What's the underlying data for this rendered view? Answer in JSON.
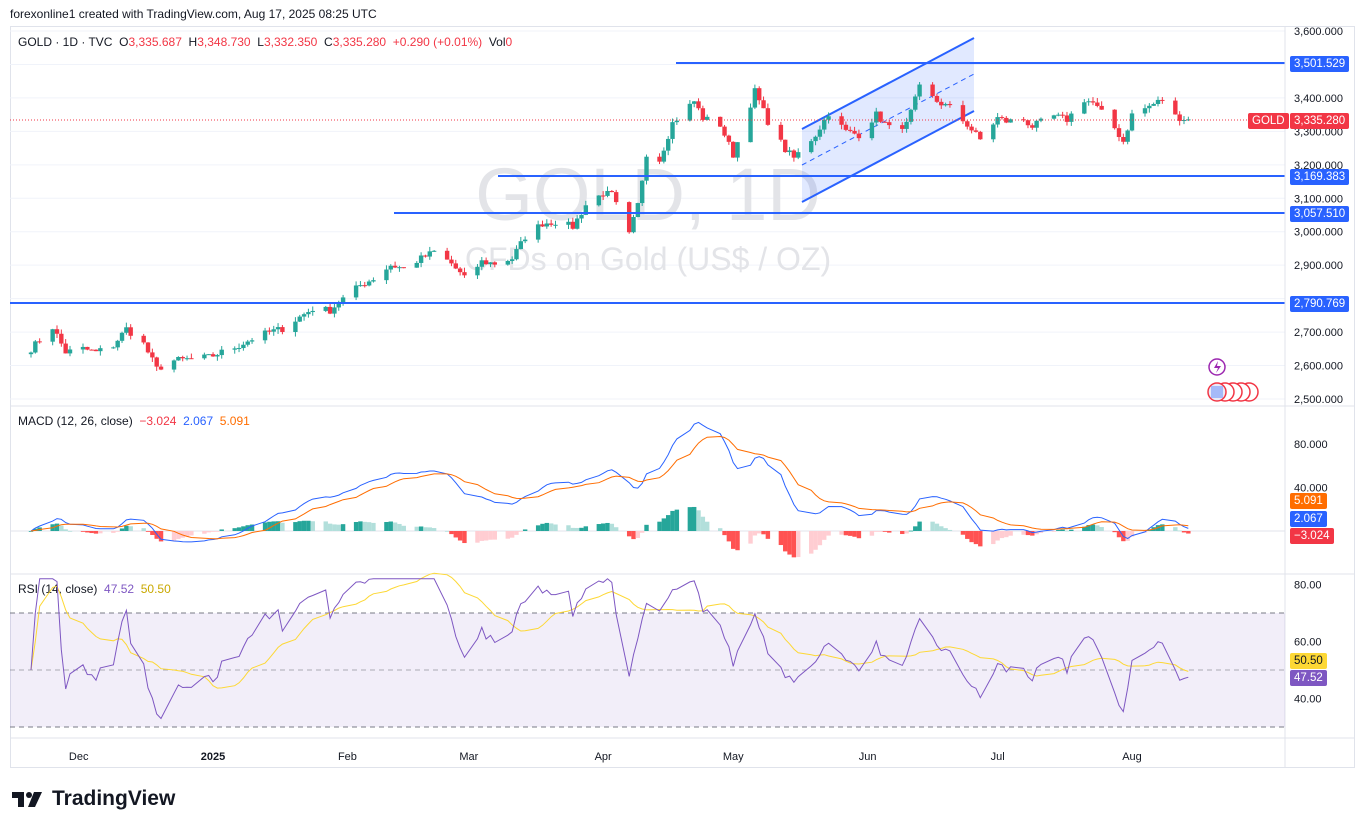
{
  "header": {
    "note": "forexonline1 created with TradingView.com, Aug 17, 2025 08:25 UTC"
  },
  "legend": {
    "symbol": "GOLD · 1D · TVC",
    "o_label": "O",
    "o": "3,335.687",
    "h_label": "H",
    "h": "3,348.730",
    "l_label": "L",
    "l": "3,332.350",
    "c_label": "C",
    "c": "3,335.280",
    "change": "+0.290 (+0.01%)",
    "vol_label": "Vol",
    "vol": "0"
  },
  "watermark": {
    "title": "GOLD, 1D",
    "subtitle": "CFDs on Gold (US$ / OZ)"
  },
  "colors": {
    "up": "#26a69a",
    "down": "#f23645",
    "level": "#2962ff",
    "macd": "#2962ff",
    "signal": "#ff6d00",
    "rsi": "#7e57c2",
    "rsi_ma": "#fdd835"
  },
  "price_axis": {
    "ticks": [
      "3,600.000",
      "3,400.000",
      "3,300.000",
      "3,200.000",
      "3,100.000",
      "3,000.000",
      "2,900.000",
      "2,700.000",
      "2,600.000",
      "2,500.000"
    ],
    "last_price": "3,335.280",
    "last_label": "GOLD",
    "levels": [
      "3,501.529",
      "3,169.383",
      "3,057.510",
      "2,790.769"
    ]
  },
  "macd": {
    "legend": "MACD (12, 26, close)",
    "hist": "−3.024",
    "macd": "2.067",
    "signal": "5.091",
    "ticks": [
      "80.000",
      "40.000"
    ],
    "tag_signal": "5.091",
    "tag_macd": "2.067",
    "tag_hist": "−3.024"
  },
  "rsi": {
    "legend": "RSI (14, close)",
    "value": "47.52",
    "ma": "50.50",
    "ticks": [
      "80.00",
      "60.00",
      "40.00"
    ],
    "tag_ma": "50.50",
    "tag_value": "47.52"
  },
  "time_axis": [
    "Dec",
    "2025",
    "Feb",
    "Mar",
    "Apr",
    "May",
    "Jun",
    "Jul",
    "Aug"
  ],
  "brand": {
    "name": "TradingView"
  },
  "chart_data": {
    "type": "candlestick",
    "symbol": "GOLD",
    "timeframe": "1D",
    "ylim": [
      2500,
      3600
    ],
    "key_levels": [
      3501.529,
      3169.383,
      3057.51,
      2790.769
    ],
    "last_close": 3335.28,
    "path": [
      [
        "2024-11-20",
        2650
      ],
      [
        "2024-11-25",
        2715
      ],
      [
        "2024-11-28",
        2640
      ],
      [
        "2024-12-02",
        2650
      ],
      [
        "2024-12-05",
        2640
      ],
      [
        "2024-12-09",
        2660
      ],
      [
        "2024-12-12",
        2710
      ],
      [
        "2024-12-16",
        2665
      ],
      [
        "2024-12-19",
        2590
      ],
      [
        "2024-12-23",
        2615
      ],
      [
        "2024-12-27",
        2620
      ],
      [
        "2024-12-31",
        2625
      ],
      [
        "2025-01-03",
        2640
      ],
      [
        "2025-01-07",
        2660
      ],
      [
        "2025-01-10",
        2680
      ],
      [
        "2025-01-14",
        2700
      ],
      [
        "2025-01-17",
        2710
      ],
      [
        "2025-01-21",
        2745
      ],
      [
        "2025-01-24",
        2770
      ],
      [
        "2025-01-28",
        2765
      ],
      [
        "2025-01-31",
        2800
      ],
      [
        "2025-02-04",
        2840
      ],
      [
        "2025-02-07",
        2860
      ],
      [
        "2025-02-11",
        2900
      ],
      [
        "2025-02-14",
        2890
      ],
      [
        "2025-02-18",
        2920
      ],
      [
        "2025-02-21",
        2940
      ],
      [
        "2025-02-25",
        2905
      ],
      [
        "2025-02-28",
        2860
      ],
      [
        "2025-03-04",
        2910
      ],
      [
        "2025-03-07",
        2905
      ],
      [
        "2025-03-11",
        2920
      ],
      [
        "2025-03-14",
        2985
      ],
      [
        "2025-03-18",
        3025
      ],
      [
        "2025-03-21",
        3030
      ],
      [
        "2025-03-25",
        3015
      ],
      [
        "2025-03-28",
        3080
      ],
      [
        "2025-04-01",
        3115
      ],
      [
        "2025-04-03",
        3110
      ],
      [
        "2025-04-07",
        2990
      ],
      [
        "2025-04-09",
        3080
      ],
      [
        "2025-04-11",
        3235
      ],
      [
        "2025-04-14",
        3215
      ],
      [
        "2025-04-17",
        3325
      ],
      [
        "2025-04-22",
        3390
      ],
      [
        "2025-04-24",
        3340
      ],
      [
        "2025-04-28",
        3320
      ],
      [
        "2025-05-01",
        3230
      ],
      [
        "2025-05-06",
        3420
      ],
      [
        "2025-05-09",
        3330
      ],
      [
        "2025-05-13",
        3245
      ],
      [
        "2025-05-15",
        3220
      ],
      [
        "2025-05-20",
        3290
      ],
      [
        "2025-05-23",
        3355
      ],
      [
        "2025-05-27",
        3300
      ],
      [
        "2025-05-30",
        3290
      ],
      [
        "2025-06-03",
        3350
      ],
      [
        "2025-06-06",
        3310
      ],
      [
        "2025-06-10",
        3320
      ],
      [
        "2025-06-13",
        3430
      ],
      [
        "2025-06-17",
        3390
      ],
      [
        "2025-06-20",
        3370
      ],
      [
        "2025-06-24",
        3320
      ],
      [
        "2025-06-27",
        3275
      ],
      [
        "2025-07-01",
        3340
      ],
      [
        "2025-07-03",
        3330
      ],
      [
        "2025-07-07",
        3335
      ],
      [
        "2025-07-09",
        3315
      ],
      [
        "2025-07-14",
        3345
      ],
      [
        "2025-07-17",
        3335
      ],
      [
        "2025-07-21",
        3395
      ],
      [
        "2025-07-23",
        3385
      ],
      [
        "2025-07-28",
        3310
      ],
      [
        "2025-07-30",
        3270
      ],
      [
        "2025-08-01",
        3350
      ],
      [
        "2025-08-05",
        3375
      ],
      [
        "2025-08-08",
        3395
      ],
      [
        "2025-08-11",
        3345
      ],
      [
        "2025-08-14",
        3335
      ],
      [
        "2025-08-15",
        3335
      ]
    ]
  }
}
